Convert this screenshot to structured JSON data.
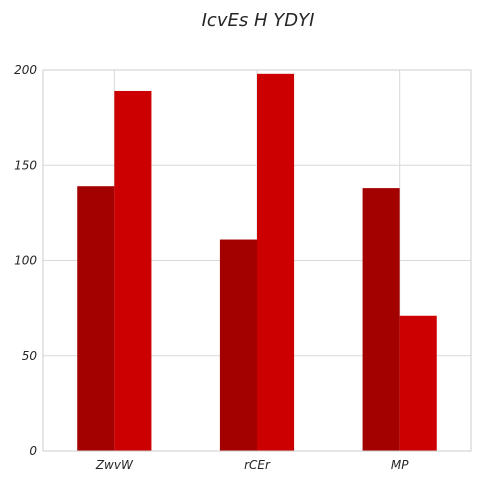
{
  "chart_data": {
    "type": "bar",
    "title": "IcvEs H YDYI",
    "xlabel": "",
    "ylabel": "",
    "categories": [
      "ZwvW",
      "rCEr",
      "MP"
    ],
    "series": [
      {
        "values": [
          139,
          111,
          138
        ],
        "color": "#a30000"
      },
      {
        "values": [
          189,
          198,
          71
        ],
        "color": "#cc0000"
      }
    ],
    "ylim": [
      0,
      200
    ],
    "yticks": [
      0,
      50,
      100,
      150,
      200
    ],
    "grid": true,
    "legend": "none"
  }
}
